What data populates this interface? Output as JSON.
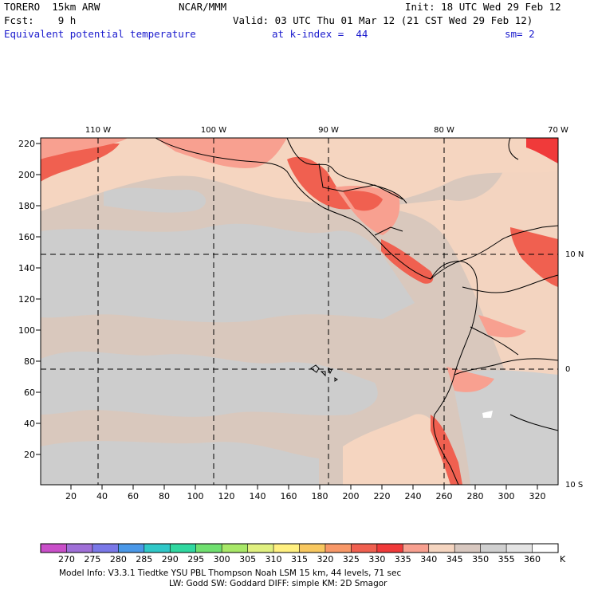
{
  "header": {
    "model": "TORERO  15km ARW",
    "org": "NCAR/MMM",
    "init": "Init: 18 UTC Wed 29 Feb 12",
    "fcst": "Fcst:    9 h",
    "valid": "Valid: 03 UTC Thu 01 Mar 12 (21 CST Wed 29 Feb 12)",
    "field": "Equivalent potential temperature",
    "level": "at k-index =  44",
    "smooth": "sm= 2"
  },
  "map": {
    "lon_labels": [
      "110 W",
      "100 W",
      "90 W",
      "80 W",
      "70 W"
    ],
    "lat_labels": [
      "10 N",
      "0",
      "10 S"
    ],
    "x_ticks": [
      "20",
      "40",
      "60",
      "80",
      "100",
      "120",
      "140",
      "160",
      "180",
      "200",
      "220",
      "240",
      "260",
      "280",
      "300",
      "320"
    ],
    "y_ticks": [
      "20",
      "40",
      "60",
      "80",
      "100",
      "120",
      "140",
      "160",
      "180",
      "200",
      "220"
    ]
  },
  "colorbar": {
    "labels": [
      "270",
      "275",
      "280",
      "285",
      "290",
      "295",
      "300",
      "305",
      "310",
      "315",
      "320",
      "325",
      "330",
      "335",
      "340",
      "345",
      "350",
      "355",
      "360"
    ],
    "unit": "K",
    "colors": [
      "#c94fc9",
      "#a070d8",
      "#7a78e8",
      "#4a98e8",
      "#30c8c8",
      "#30d8a0",
      "#70e070",
      "#a8e868",
      "#e0f080",
      "#fff080",
      "#f8c860",
      "#f89868",
      "#f06050",
      "#f03a3a",
      "#f8a090",
      "#f5d5c0",
      "#d8c8c0",
      "#d0d0d0",
      "#e4e4e4",
      "#ffffff"
    ]
  },
  "footer": {
    "line1": "Model Info: V3.3.1    Tiedtke YSU PBL  Thompson     Noah LSM  15 km,   44 levels,   71 sec",
    "line2": "LW: Godd SW: Goddard DIFF: simple KM: 2D Smagor"
  }
}
